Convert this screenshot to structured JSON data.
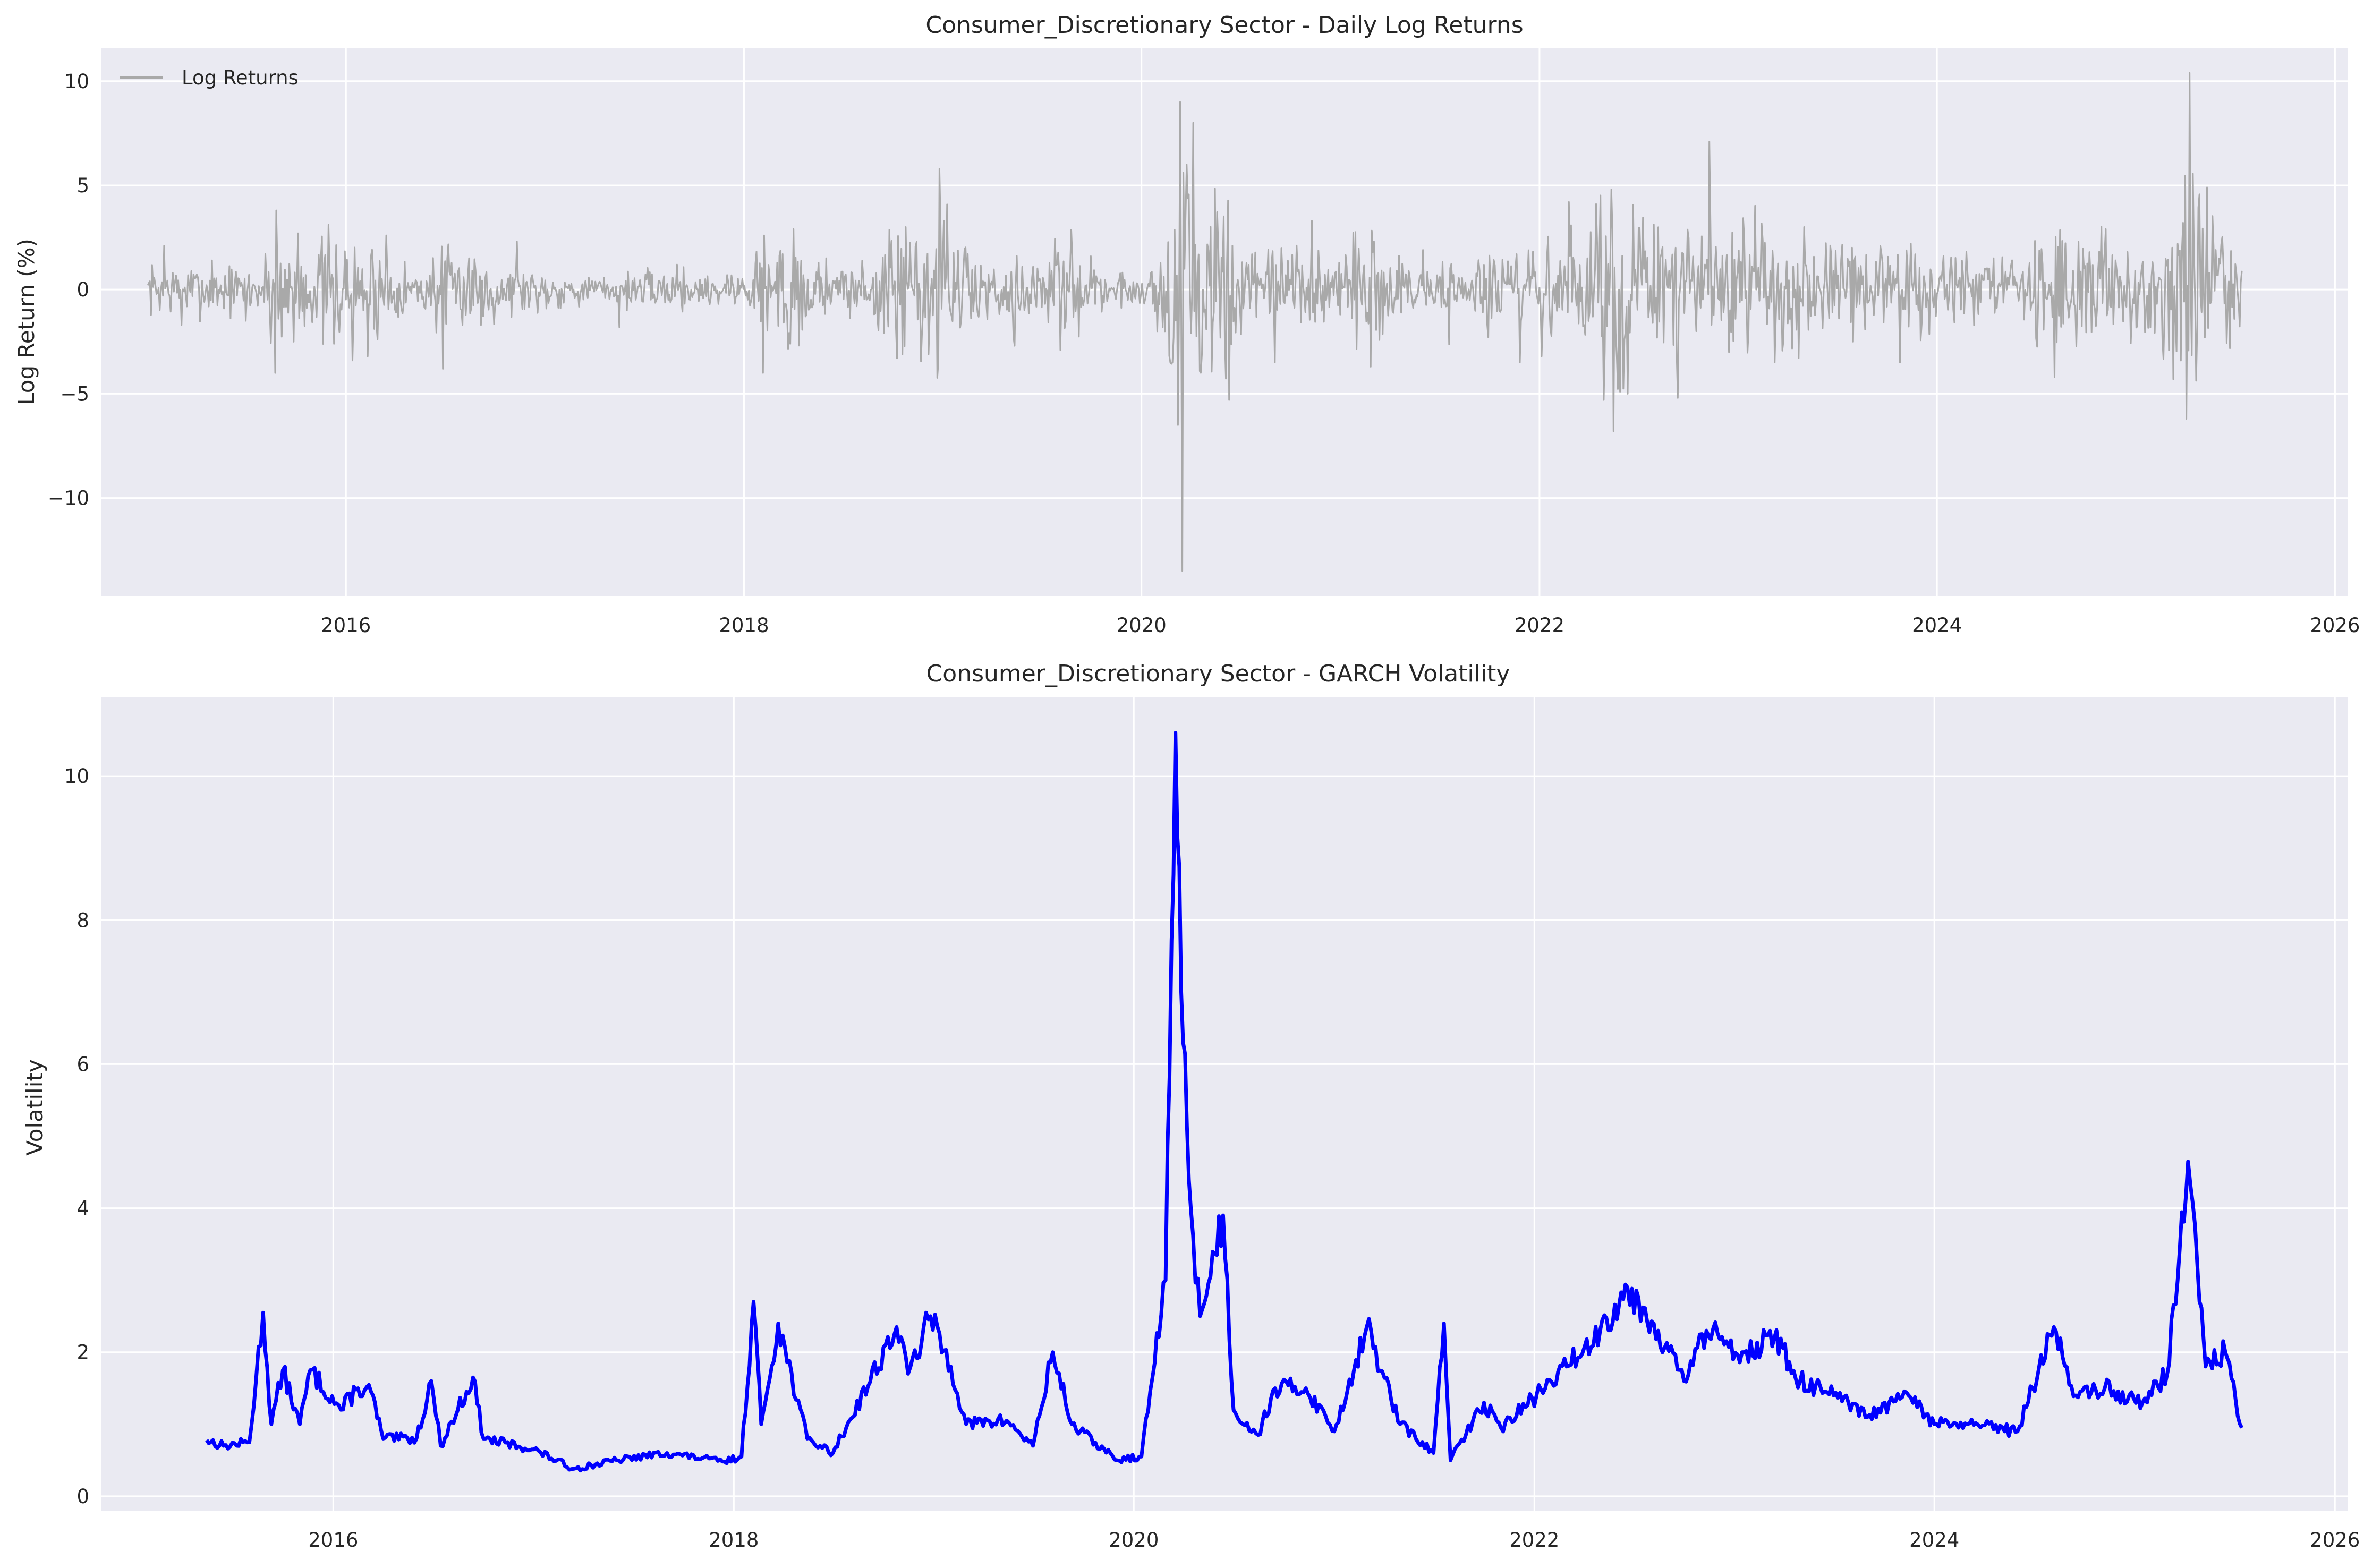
{
  "colors": {
    "background": "#eaeaf2",
    "grid": "#ffffff",
    "returns_line": "#a9a9a9",
    "volatility_line": "#0000ff"
  },
  "chart_data": [
    {
      "type": "line",
      "title": "Consumer_Discretionary Sector - Daily Log Returns",
      "xlabel": "",
      "ylabel": "Log Return (%)",
      "x_ticks": [
        "2016",
        "2018",
        "2020",
        "2022",
        "2024",
        "2026"
      ],
      "y_ticks": [
        -10,
        -5,
        0,
        5,
        10
      ],
      "xlim": [
        "2014-10-08",
        "2026-01-25"
      ],
      "ylim": [
        -14.7,
        11.6
      ],
      "grid": true,
      "legend": {
        "placement": "top-left",
        "entries": [
          "Log Returns"
        ]
      },
      "series": [
        {
          "name": "Log Returns",
          "color": "#a9a9a9",
          "style": "thin",
          "points": [
            [
              "2015-01-02",
              0.2
            ],
            [
              "2015-02-01",
              2.1
            ],
            [
              "2015-03-05",
              -1.7
            ],
            [
              "2015-05-01",
              1.4
            ],
            [
              "2015-07-01",
              -1.5
            ],
            [
              "2015-08-24",
              -4.0
            ],
            [
              "2015-08-26",
              3.8
            ],
            [
              "2015-09-28",
              -2.5
            ],
            [
              "2015-10-05",
              2.7
            ],
            [
              "2015-12-10",
              -2.6
            ],
            [
              "2016-01-13",
              -3.4
            ],
            [
              "2016-02-10",
              -3.2
            ],
            [
              "2016-03-15",
              2.6
            ],
            [
              "2016-06-27",
              -3.8
            ],
            [
              "2016-08-15",
              1.5
            ],
            [
              "2016-11-10",
              2.3
            ],
            [
              "2017-05-17",
              -1.8
            ],
            [
              "2017-09-01",
              1.2
            ],
            [
              "2017-12-01",
              0.7
            ],
            [
              "2018-02-05",
              -4.0
            ],
            [
              "2018-02-08",
              2.6
            ],
            [
              "2018-04-02",
              2.9
            ],
            [
              "2018-06-01",
              1.5
            ],
            [
              "2018-10-10",
              -3.3
            ],
            [
              "2018-10-25",
              3.0
            ],
            [
              "2018-12-24",
              -3.5
            ],
            [
              "2018-12-26",
              5.8
            ],
            [
              "2019-01-04",
              3.3
            ],
            [
              "2019-05-13",
              -2.7
            ],
            [
              "2019-08-05",
              -2.9
            ],
            [
              "2019-10-01",
              1.6
            ],
            [
              "2020-01-31",
              -2.0
            ],
            [
              "2020-02-24",
              -3.5
            ],
            [
              "2020-03-09",
              -6.5
            ],
            [
              "2020-03-13",
              9.0
            ],
            [
              "2020-03-16",
              -13.5
            ],
            [
              "2020-03-24",
              6.0
            ],
            [
              "2020-04-06",
              8.0
            ],
            [
              "2020-04-20",
              -4.0
            ],
            [
              "2020-06-11",
              -5.3
            ],
            [
              "2020-09-03",
              -3.5
            ],
            [
              "2020-11-09",
              3.3
            ],
            [
              "2021-02-25",
              -3.7
            ],
            [
              "2021-06-01",
              1.9
            ],
            [
              "2021-09-30",
              -2.3
            ],
            [
              "2021-11-26",
              -3.5
            ],
            [
              "2022-01-05",
              -3.2
            ],
            [
              "2022-02-24",
              4.2
            ],
            [
              "2022-04-29",
              -5.3
            ],
            [
              "2022-05-13",
              4.8
            ],
            [
              "2022-05-18",
              -6.8
            ],
            [
              "2022-06-13",
              -5.0
            ],
            [
              "2022-09-13",
              -5.2
            ],
            [
              "2022-11-10",
              7.1
            ],
            [
              "2022-12-15",
              -3.0
            ],
            [
              "2023-03-10",
              -3.5
            ],
            [
              "2023-05-02",
              3.0
            ],
            [
              "2023-08-01",
              -2.5
            ],
            [
              "2023-10-26",
              -3.5
            ],
            [
              "2023-11-14",
              2.2
            ],
            [
              "2024-04-15",
              1.5
            ],
            [
              "2024-08-05",
              -4.2
            ],
            [
              "2024-09-18",
              2.3
            ],
            [
              "2024-11-06",
              2.9
            ],
            [
              "2025-03-10",
              -4.3
            ],
            [
              "2025-04-04",
              -6.2
            ],
            [
              "2025-04-09",
              10.4
            ],
            [
              "2025-05-12",
              4.9
            ],
            [
              "2025-07-15",
              0.9
            ]
          ]
        }
      ]
    },
    {
      "type": "line",
      "title": "Consumer_Discretionary Sector - GARCH Volatility",
      "xlabel": "",
      "ylabel": "Volatility",
      "x_ticks": [
        "2016",
        "2018",
        "2020",
        "2022",
        "2024",
        "2026"
      ],
      "y_ticks": [
        0,
        2,
        4,
        6,
        8,
        10
      ],
      "xlim": [
        "2014-11-03",
        "2026-01-25"
      ],
      "ylim": [
        -0.2,
        11.1
      ],
      "grid": true,
      "series": [
        {
          "name": "",
          "color": "#0000ff",
          "style": "thick",
          "points": [
            [
              "2015-05-15",
              0.78
            ],
            [
              "2015-06-15",
              0.7
            ],
            [
              "2015-08-01",
              0.75
            ],
            [
              "2015-08-26",
              2.55
            ],
            [
              "2015-09-10",
              1.0
            ],
            [
              "2015-10-01",
              1.75
            ],
            [
              "2015-11-01",
              1.0
            ],
            [
              "2015-11-20",
              1.75
            ],
            [
              "2016-01-15",
              1.2
            ],
            [
              "2016-02-15",
              1.5
            ],
            [
              "2016-03-10",
              1.45
            ],
            [
              "2016-04-01",
              0.8
            ],
            [
              "2016-06-01",
              0.8
            ],
            [
              "2016-06-28",
              1.6
            ],
            [
              "2016-07-15",
              0.7
            ],
            [
              "2016-09-12",
              1.65
            ],
            [
              "2016-10-01",
              0.8
            ],
            [
              "2017-01-01",
              0.65
            ],
            [
              "2017-03-15",
              0.38
            ],
            [
              "2017-06-01",
              0.5
            ],
            [
              "2017-09-01",
              0.6
            ],
            [
              "2017-12-15",
              0.48
            ],
            [
              "2018-01-15",
              0.55
            ],
            [
              "2018-02-06",
              2.7
            ],
            [
              "2018-02-20",
              1.0
            ],
            [
              "2018-03-23",
              2.4
            ],
            [
              "2018-05-15",
              0.8
            ],
            [
              "2018-07-01",
              0.6
            ],
            [
              "2018-10-25",
              2.35
            ],
            [
              "2018-11-15",
              1.7
            ],
            [
              "2018-12-26",
              2.5
            ],
            [
              "2019-02-01",
              1.8
            ],
            [
              "2019-03-01",
              1.0
            ],
            [
              "2019-05-14",
              1.05
            ],
            [
              "2019-07-01",
              0.7
            ],
            [
              "2019-08-06",
              2.0
            ],
            [
              "2019-09-10",
              1.0
            ],
            [
              "2019-12-01",
              0.5
            ],
            [
              "2020-01-15",
              0.55
            ],
            [
              "2020-02-28",
              3.0
            ],
            [
              "2020-03-17",
              10.6
            ],
            [
              "2020-03-31",
              6.3
            ],
            [
              "2020-04-14",
              4.0
            ],
            [
              "2020-05-01",
              2.5
            ],
            [
              "2020-06-12",
              3.9
            ],
            [
              "2020-07-01",
              1.2
            ],
            [
              "2020-08-15",
              0.85
            ],
            [
              "2020-09-15",
              1.5
            ],
            [
              "2020-11-10",
              1.5
            ],
            [
              "2021-01-01",
              0.9
            ],
            [
              "2021-03-01",
              2.35
            ],
            [
              "2021-05-01",
              1.0
            ],
            [
              "2021-07-01",
              0.6
            ],
            [
              "2021-07-20",
              2.4
            ],
            [
              "2021-08-01",
              0.5
            ],
            [
              "2021-10-01",
              1.3
            ],
            [
              "2021-11-01",
              0.95
            ],
            [
              "2022-01-05",
              1.4
            ],
            [
              "2022-03-01",
              1.8
            ],
            [
              "2022-05-01",
              2.3
            ],
            [
              "2022-06-20",
              2.9
            ],
            [
              "2022-08-15",
              2.3
            ],
            [
              "2022-10-01",
              1.6
            ],
            [
              "2022-11-11",
              2.3
            ],
            [
              "2023-01-15",
              2.0
            ],
            [
              "2023-03-15",
              2.2
            ],
            [
              "2023-05-01",
              1.6
            ],
            [
              "2023-07-01",
              1.4
            ],
            [
              "2023-09-01",
              1.1
            ],
            [
              "2023-11-15",
              1.4
            ],
            [
              "2024-01-01",
              1.0
            ],
            [
              "2024-03-01",
              1.0
            ],
            [
              "2024-06-01",
              0.9
            ],
            [
              "2024-08-06",
              2.35
            ],
            [
              "2024-09-15",
              1.4
            ],
            [
              "2024-11-07",
              1.5
            ],
            [
              "2025-01-15",
              1.3
            ],
            [
              "2025-03-01",
              1.7
            ],
            [
              "2025-04-08",
              4.65
            ],
            [
              "2025-04-25",
              3.2
            ],
            [
              "2025-05-10",
              1.8
            ],
            [
              "2025-06-15",
              2.0
            ],
            [
              "2025-07-15",
              0.95
            ]
          ]
        }
      ]
    }
  ]
}
